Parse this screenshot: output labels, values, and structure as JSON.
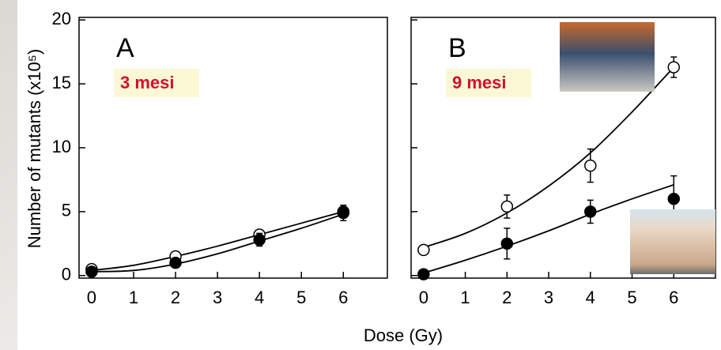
{
  "chart_data": [
    {
      "type": "scatter",
      "title": "A",
      "subtitle": "3 mesi",
      "ylabel": "Number of mutants (x10⁵)",
      "xlabel": "Dose (Gy)",
      "xlim": [
        -0.3,
        7.05
      ],
      "ylim": [
        -0.2,
        20.2
      ],
      "xticks": [
        0,
        1,
        2,
        3,
        4,
        5,
        6
      ],
      "yticks": [
        0,
        5,
        10,
        15,
        20
      ],
      "ytick_labels": true,
      "series": [
        {
          "marker": "open",
          "color": "#000000",
          "x": [
            0,
            2,
            4,
            6
          ],
          "values": [
            0.5,
            1.5,
            3.2,
            5.0
          ],
          "errors": [
            null,
            null,
            null,
            null
          ]
        },
        {
          "marker": "filled",
          "color": "#000000",
          "x": [
            0,
            2,
            4,
            6
          ],
          "values": [
            0.3,
            1.0,
            2.8,
            4.9
          ],
          "errors": [
            null,
            null,
            0.5,
            0.6
          ]
        },
        {
          "marker": "line",
          "color": "#000000",
          "x": [
            0,
            1,
            2,
            3,
            4,
            5,
            6
          ],
          "values": [
            0.4,
            0.8,
            1.5,
            2.3,
            3.2,
            4.1,
            5.0
          ]
        },
        {
          "marker": "line",
          "color": "#000000",
          "x": [
            0,
            1,
            2,
            3,
            4,
            5,
            6
          ],
          "values": [
            0.3,
            0.4,
            0.9,
            1.7,
            2.7,
            3.7,
            4.8
          ]
        }
      ]
    },
    {
      "type": "scatter",
      "title": "B",
      "subtitle": "9 mesi",
      "xlim": [
        -0.3,
        7.0
      ],
      "ylim": [
        -0.2,
        20.2
      ],
      "xticks": [
        0,
        1,
        2,
        3,
        4,
        5,
        6
      ],
      "yticks": [
        0,
        5,
        10,
        15,
        20
      ],
      "ytick_labels": false,
      "series": [
        {
          "marker": "open",
          "color": "#000000",
          "x": [
            0,
            2,
            4,
            6
          ],
          "values": [
            2.0,
            5.4,
            8.6,
            16.3
          ],
          "errors": [
            null,
            0.9,
            1.3,
            0.8
          ]
        },
        {
          "marker": "filled",
          "color": "#000000",
          "x": [
            0,
            2,
            4,
            6
          ],
          "values": [
            0.1,
            2.5,
            5.0,
            6.0
          ],
          "errors": [
            null,
            1.2,
            0.9,
            1.8
          ]
        },
        {
          "marker": "line",
          "color": "#000000",
          "x": [
            0,
            1,
            2,
            3,
            4,
            5,
            6
          ],
          "values": [
            2.2,
            3.3,
            4.9,
            7.0,
            9.6,
            12.8,
            16.3
          ]
        },
        {
          "marker": "line",
          "color": "#000000",
          "x": [
            0,
            1,
            2,
            3,
            4,
            5,
            6
          ],
          "values": [
            0.2,
            1.2,
            2.3,
            3.5,
            4.8,
            6.0,
            7.1
          ]
        }
      ]
    }
  ]
}
